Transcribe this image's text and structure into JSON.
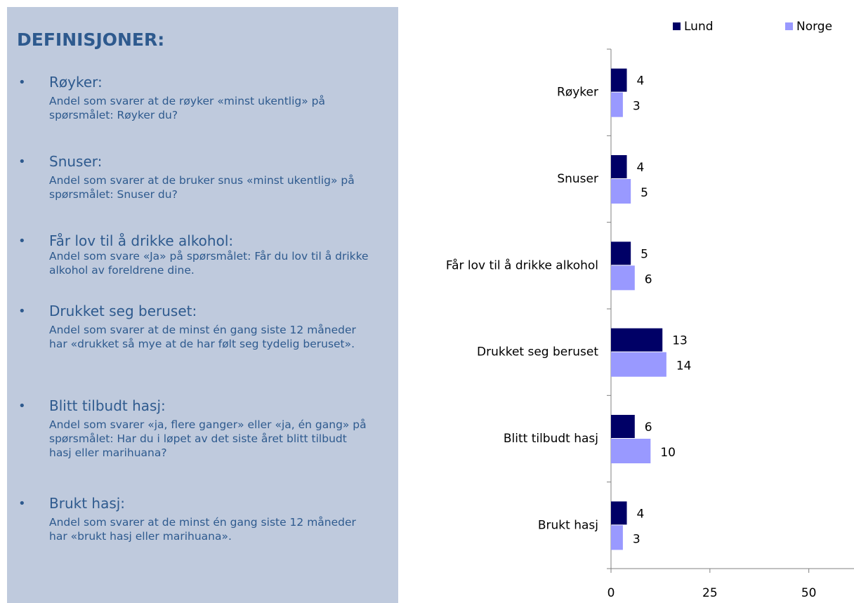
{
  "definitions": {
    "title": "DEFINISJONER:",
    "items": [
      {
        "term": "Røyker:",
        "text": "Andel som svarer at de røyker «minst ukentlig» på spørsmålet: Røyker du?"
      },
      {
        "term": "Snuser:",
        "text": "Andel som svarer at de bruker snus «minst ukentlig» på spørsmålet: Snuser du?"
      },
      {
        "term": "Får lov til å drikke alkohol:",
        "text": "Andel som svare «Ja» på spørsmålet: Får du lov til å drikke alkohol av foreldrene dine."
      },
      {
        "term": "Drukket seg beruset:",
        "text": "Andel som svarer at de minst én gang siste 12 måneder har «drukket så mye at de har følt seg tydelig beruset»."
      },
      {
        "term": "Blitt tilbudt hasj:",
        "text": "Andel som svarer «ja, flere ganger» eller «ja, én gang» på spørsmålet: Har du i løpet av det siste året blitt tilbudt hasj eller marihuana?"
      },
      {
        "term": "Brukt hasj:",
        "text": "Andel som svarer at de minst én gang siste 12 måneder har «brukt hasj eller marihuana»."
      }
    ]
  },
  "chart_data": {
    "type": "bar",
    "orientation": "horizontal",
    "categories": [
      "Røyker",
      "Snuser",
      "Får lov til å drikke alkohol",
      "Drukket seg beruset",
      "Blitt tilbudt hasj",
      "Brukt hasj"
    ],
    "series": [
      {
        "name": "Lund",
        "color": "#000066",
        "values": [
          4,
          4,
          5,
          13,
          6,
          4
        ]
      },
      {
        "name": "Norge",
        "color": "#9999ff",
        "values": [
          3,
          5,
          6,
          14,
          10,
          3
        ]
      }
    ],
    "xlim": [
      0,
      60
    ],
    "xticks": [
      0,
      25,
      50
    ],
    "legend": "top-right"
  }
}
